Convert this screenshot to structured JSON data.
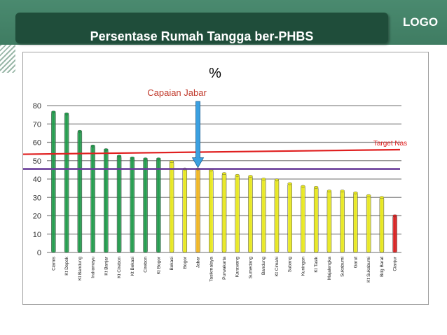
{
  "slide": {
    "title": "Persentase Rumah Tangga ber-PHBS",
    "logo": "LOGO"
  },
  "chart_data": {
    "type": "bar",
    "title": "%",
    "categories": [
      "Ciamis",
      "Kt Depok",
      "Kt Bandung",
      "Indramayu",
      "Kt Banjar",
      "Kt Cirebon",
      "Kt Bekasi",
      "Cirebon",
      "Kt Bogor",
      "Bekasi",
      "Bogor",
      "Jabar",
      "Tasikmalaya",
      "Purwakarta",
      "Karawang",
      "Sumedang",
      "Bandung",
      "Kt Cimahi",
      "Subang",
      "Kuningan",
      "Kt Tasik",
      "Majalengka",
      "Sukabumi",
      "Garut",
      "Kt Sukabumi",
      "Bdg Barat",
      "Cianjur"
    ],
    "values": [
      76.5,
      75.5,
      66,
      58,
      56,
      52.5,
      51.5,
      51,
      51,
      49.5,
      45.5,
      45.5,
      45,
      43,
      42,
      41.5,
      40,
      39.5,
      37.5,
      36,
      35.5,
      33.5,
      33.5,
      32.5,
      31,
      30,
      20
    ],
    "bar_colors": [
      "#1f9a4a",
      "#1f9a4a",
      "#1f9a4a",
      "#1f9a4a",
      "#1f9a4a",
      "#1f9a4a",
      "#1f9a4a",
      "#1f9a4a",
      "#1f9a4a",
      "#e8e81c",
      "#e8e81c",
      "#f0b41c",
      "#e8e81c",
      "#e8e81c",
      "#e8e81c",
      "#e8e81c",
      "#e8e81c",
      "#e8e81c",
      "#e8e81c",
      "#e8e81c",
      "#e8e81c",
      "#e8e81c",
      "#e8e81c",
      "#e8e81c",
      "#e8e81c",
      "#e8e81c",
      "#d81e1e"
    ],
    "ylim": [
      0,
      80
    ],
    "yticks": [
      0,
      10,
      20,
      30,
      40,
      50,
      60,
      70,
      80
    ],
    "grid": true,
    "target_line": {
      "label": "Target Nas",
      "value_start": 53.5,
      "value_end": 56,
      "color": "#e02020"
    },
    "jabar_line": {
      "value": 45.5,
      "color": "#6a3d9a"
    },
    "annotation": {
      "label": "Capaian Jabar",
      "category": "Jabar",
      "color": "#c0392b",
      "arrow_color": "#3ba0e0"
    }
  }
}
